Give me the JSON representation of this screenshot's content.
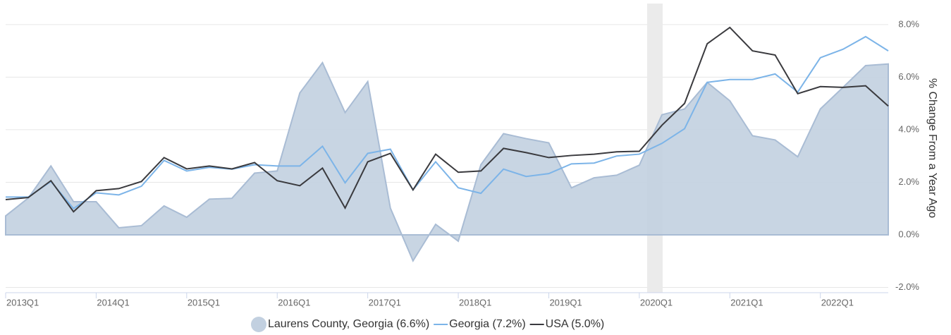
{
  "chart_data": {
    "type": "line",
    "y_label": "% Change From a Year Ago",
    "categories": [
      "2013Q1",
      null,
      null,
      null,
      "2014Q1",
      null,
      null,
      null,
      "2015Q1",
      null,
      null,
      null,
      "2016Q1",
      null,
      null,
      null,
      "2017Q1",
      null,
      null,
      null,
      "2018Q1",
      null,
      null,
      null,
      "2019Q1",
      null,
      null,
      null,
      "2020Q1",
      null,
      null,
      null,
      "2021Q1",
      null,
      null,
      null,
      "2022Q1",
      null,
      null,
      null
    ],
    "series": [
      {
        "name": "Laurens County, Georgia (6.6%)",
        "style": "area",
        "color": "#c2d0e0",
        "values": [
          0.72,
          1.4,
          2.62,
          1.26,
          1.26,
          0.27,
          0.35,
          1.1,
          0.67,
          1.36,
          1.39,
          2.35,
          2.43,
          5.4,
          6.55,
          4.65,
          5.83,
          1.02,
          -0.99,
          0.4,
          -0.24,
          2.67,
          3.85,
          3.66,
          3.5,
          1.79,
          2.17,
          2.27,
          2.65,
          4.57,
          4.79,
          5.8,
          5.1,
          3.77,
          3.61,
          2.97,
          4.79,
          5.61,
          6.44,
          6.5
        ]
      },
      {
        "name": "Georgia (7.2%)",
        "style": "line",
        "color": "#7cb4e8",
        "values": [
          1.44,
          1.44,
          2.03,
          1.0,
          1.6,
          1.52,
          1.85,
          2.83,
          2.43,
          2.57,
          2.5,
          2.67,
          2.62,
          2.62,
          3.37,
          1.98,
          3.1,
          3.26,
          1.71,
          2.78,
          1.79,
          1.58,
          2.5,
          2.22,
          2.33,
          2.7,
          2.73,
          3.0,
          3.07,
          3.48,
          4.04,
          5.8,
          5.91,
          5.91,
          6.12,
          5.43,
          6.74,
          7.06,
          7.54,
          7.0
        ]
      },
      {
        "name": "USA (5.0%)",
        "style": "line",
        "color": "#3a3a3e",
        "values": [
          1.34,
          1.42,
          2.06,
          0.88,
          1.68,
          1.76,
          2.03,
          2.94,
          2.51,
          2.62,
          2.51,
          2.75,
          2.06,
          1.87,
          2.54,
          1.02,
          2.78,
          3.1,
          1.71,
          3.07,
          2.38,
          2.43,
          3.29,
          3.13,
          2.94,
          3.02,
          3.07,
          3.16,
          3.18,
          4.17,
          5.0,
          7.27,
          7.89,
          7.0,
          6.84,
          5.37,
          5.64,
          5.61,
          5.67,
          4.9
        ]
      }
    ],
    "ylim": [
      -2.2,
      8.8
    ],
    "yticks": [
      {
        "value": -2,
        "label": "-2.0%"
      },
      {
        "value": 0,
        "label": "0.0%"
      },
      {
        "value": 2,
        "label": "2.0%"
      },
      {
        "value": 4,
        "label": "4.0%"
      },
      {
        "value": 6,
        "label": "6.0%"
      },
      {
        "value": 8,
        "label": "8.0%"
      }
    ],
    "grid": true,
    "legend": "bottom"
  }
}
